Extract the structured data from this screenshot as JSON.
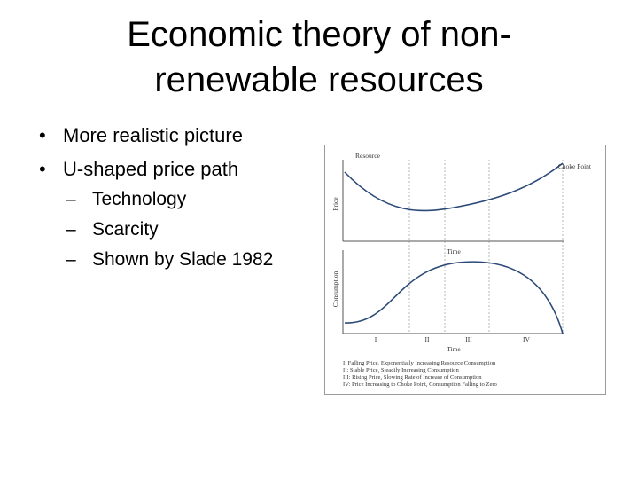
{
  "slide": {
    "title": "Economic theory of non-renewable resources",
    "bullets": [
      "More realistic picture",
      "U-shaped price path"
    ],
    "sub_bullets": [
      "Technology",
      "Scarcity",
      "Shown by Slade 1982"
    ]
  },
  "figure": {
    "label_resource": "Resource",
    "label_choke_point": "Choke Point",
    "label_price": "Price",
    "label_time_top": "Time",
    "label_consumption": "Consumption",
    "label_time_bottom": "Time",
    "phases": [
      "I",
      "II",
      "III",
      "IV"
    ],
    "legend": [
      "I:    Falling Price, Exponentially Increasing Resource Consumption",
      "II:   Stable Price, Steadily Increasing Consumption",
      "III:  Rising Price, Slowing Rate of Increase of Consumption",
      "IV:   Price Increasing to Choke Point, Consumption Falling to Zero"
    ],
    "curve_color": "#2c4a78"
  }
}
